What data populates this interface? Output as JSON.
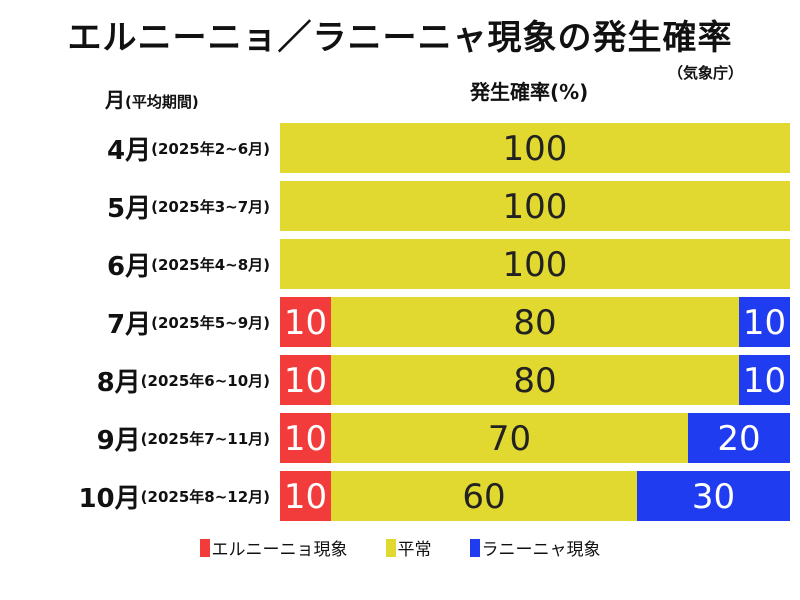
{
  "title": "エルニーニョ／ラニーニャ現象の発生確率",
  "source": "（気象庁）",
  "col_month": "月",
  "col_month_note": "(平均期間)",
  "col_prob": "発生確率(%)",
  "colors": {
    "elnino": "#f23c3c",
    "normal": "#e2d930",
    "lanina": "#1f3cf0"
  },
  "rows": [
    {
      "month": "4月",
      "period": "(2025年2~6月)"
    },
    {
      "month": "5月",
      "period": "(2025年3~7月)"
    },
    {
      "month": "6月",
      "period": "(2025年4~8月)"
    },
    {
      "month": "7月",
      "period": "(2025年5~9月)"
    },
    {
      "month": "8月",
      "period": "(2025年6~10月)"
    },
    {
      "month": "9月",
      "period": "(2025年7~11月)"
    },
    {
      "month": "10月",
      "period": "(2025年8~12月)"
    }
  ],
  "chart_data": {
    "type": "bar",
    "stacked": true,
    "orientation": "horizontal",
    "categories": [
      "4月",
      "5月",
      "6月",
      "7月",
      "8月",
      "9月",
      "10月"
    ],
    "series": [
      {
        "name": "エルニーニョ現象",
        "values": [
          0,
          0,
          0,
          10,
          10,
          10,
          10
        ]
      },
      {
        "name": "平常",
        "values": [
          100,
          100,
          100,
          80,
          80,
          70,
          60
        ]
      },
      {
        "name": "ラニーニャ現象",
        "values": [
          0,
          0,
          0,
          10,
          10,
          20,
          30
        ]
      }
    ],
    "xlim": [
      0,
      100
    ],
    "legend": "bottom"
  }
}
